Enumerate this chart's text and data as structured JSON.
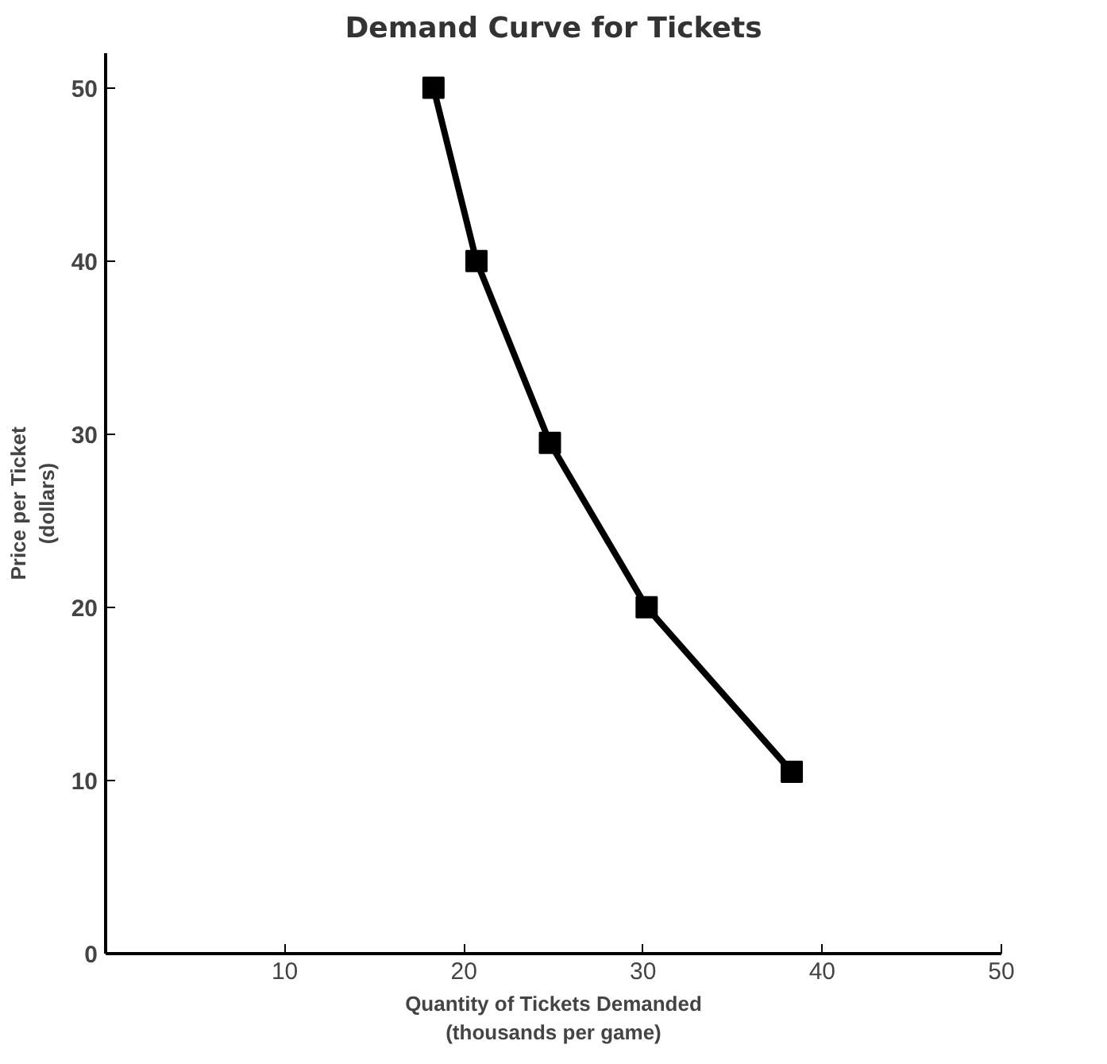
{
  "chart_data": {
    "type": "line",
    "title": "Demand Curve for Tickets",
    "xlabel": "Quantity of Tickets Demanded\n(thousands per game)",
    "ylabel": "Price per Ticket\n(dollars)",
    "x": [
      18.3,
      20.7,
      24.8,
      30.2,
      38.3
    ],
    "series": [
      {
        "color": "#000000",
        "values": [
          50,
          40,
          29.5,
          20,
          10.5
        ]
      }
    ],
    "xlim": [
      0,
      50
    ],
    "xticks": [
      {
        "value": 0,
        "label": null
      },
      10,
      20,
      30,
      40,
      50
    ],
    "ylim": [
      0,
      52
    ],
    "yticks": [
      0,
      10,
      20,
      30,
      40,
      50
    ],
    "marker": "square",
    "line_style": "solid",
    "grid": false
  }
}
